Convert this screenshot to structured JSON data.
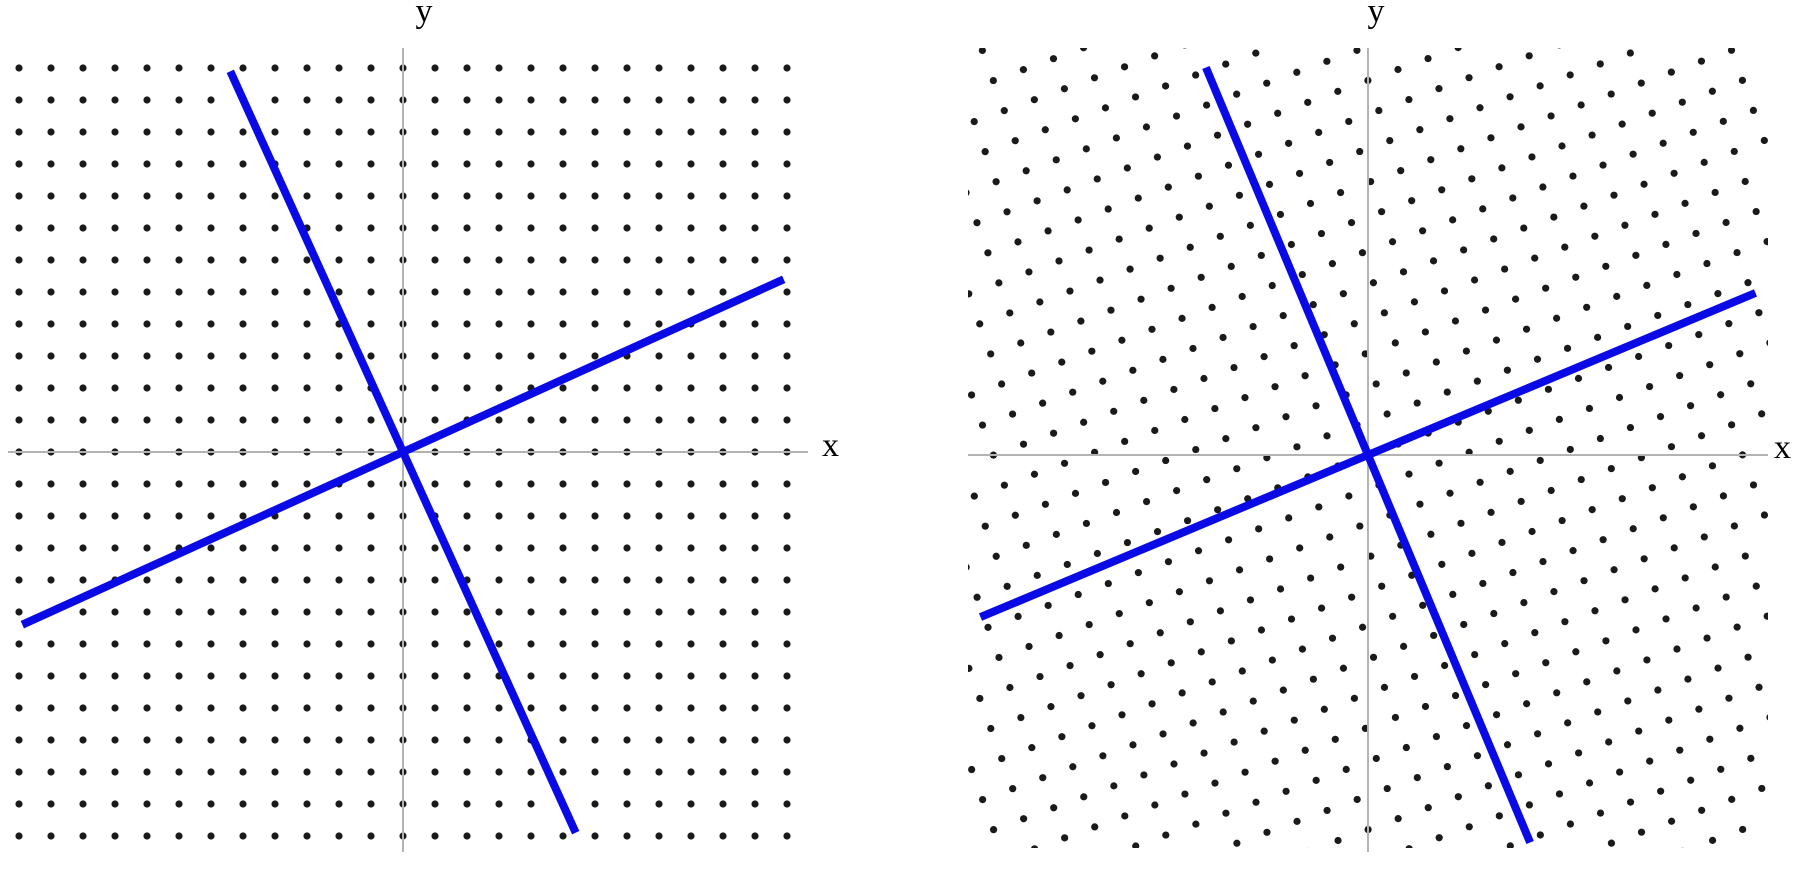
{
  "colors": {
    "background": "#ffffff",
    "dot": "#1a1a1a",
    "axis": "#b3b3b3",
    "line": "#0a0ae6"
  },
  "panels": [
    {
      "name": "square-lattice-panel",
      "lattice": "square",
      "rotation_deg": 0,
      "labels": {
        "x": "x",
        "y": "y"
      },
      "lines": [
        {
          "name": "steep-line",
          "direction_deg": -65.6
        },
        {
          "name": "shallow-line",
          "direction_deg": 24.4
        }
      ]
    },
    {
      "name": "rotated-lattice-panel",
      "lattice": "square",
      "rotation_deg": 20,
      "labels": {
        "x": "x",
        "y": "y"
      },
      "lines": [
        {
          "name": "steep-line",
          "direction_deg": -67.3
        },
        {
          "name": "shallow-line",
          "direction_deg": 22.7
        }
      ]
    }
  ]
}
